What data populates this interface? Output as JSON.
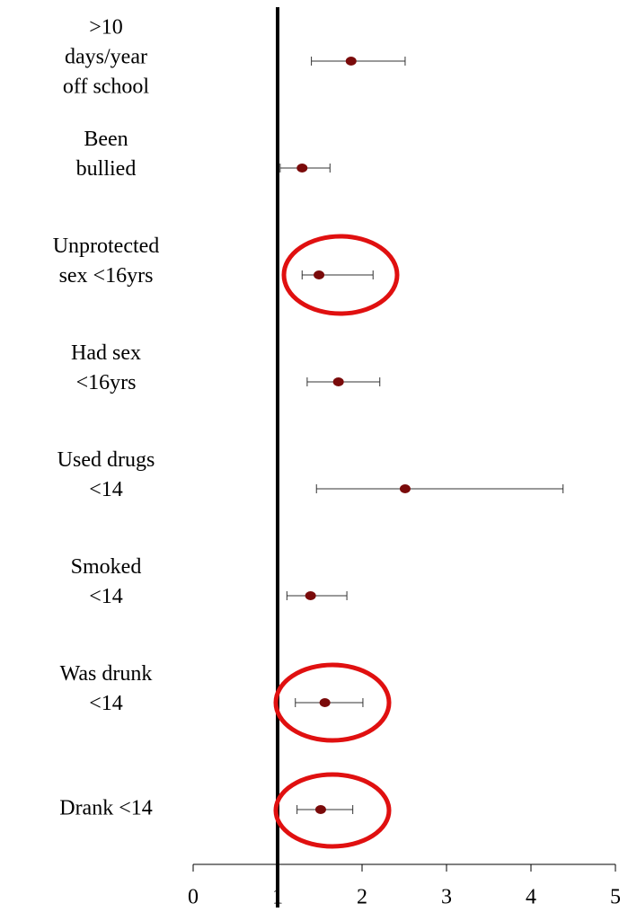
{
  "chart_data": {
    "type": "forest",
    "categories": [
      [
        ">10",
        "days/year",
        "off school"
      ],
      [
        "Been",
        "bullied"
      ],
      [
        "Unprotected",
        "sex <16yrs"
      ],
      [
        "Had sex",
        "<16yrs"
      ],
      [
        "Used drugs",
        "<14"
      ],
      [
        "Smoked",
        "<14"
      ],
      [
        "Was drunk",
        "<14"
      ],
      [
        "Drank <14"
      ]
    ],
    "values": [
      1.87,
      1.29,
      1.49,
      1.72,
      2.51,
      1.39,
      1.56,
      1.51
    ],
    "lower": [
      1.4,
      1.03,
      1.29,
      1.35,
      1.46,
      1.11,
      1.21,
      1.23
    ],
    "upper": [
      2.51,
      1.62,
      2.13,
      2.21,
      4.38,
      1.82,
      2.01,
      1.89
    ],
    "color": "#7a0a0a",
    "reference": 1,
    "xlim": [
      0,
      5
    ],
    "xticks": [
      0,
      1,
      2,
      3,
      4,
      5
    ]
  }
}
